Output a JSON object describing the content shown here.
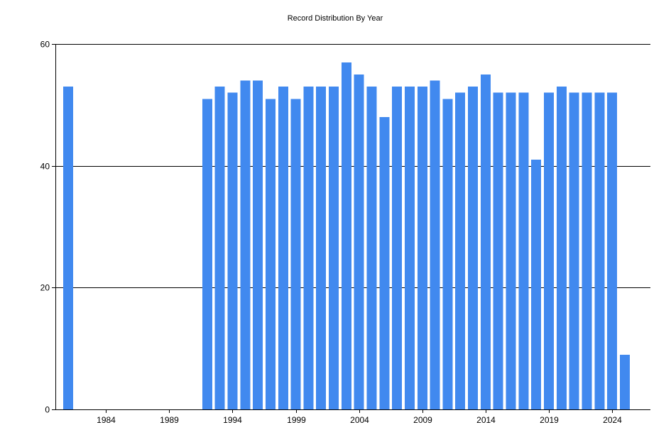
{
  "chart_data": {
    "type": "bar",
    "title": "Record Distribution By Year",
    "xlabel": "",
    "ylabel": "",
    "x_range": [
      1980,
      2025
    ],
    "ylim": [
      0,
      60
    ],
    "y_ticks": [
      0,
      20,
      40,
      60
    ],
    "x_ticks": [
      1984,
      1989,
      1994,
      1999,
      2004,
      2009,
      2014,
      2019,
      2024
    ],
    "grid": "horizontal",
    "bar_color": "#4189EF",
    "data": [
      {
        "year": 1981,
        "value": 53
      },
      {
        "year": 1992,
        "value": 51
      },
      {
        "year": 1993,
        "value": 53
      },
      {
        "year": 1994,
        "value": 52
      },
      {
        "year": 1995,
        "value": 54
      },
      {
        "year": 1996,
        "value": 54
      },
      {
        "year": 1997,
        "value": 51
      },
      {
        "year": 1998,
        "value": 53
      },
      {
        "year": 1999,
        "value": 51
      },
      {
        "year": 2000,
        "value": 53
      },
      {
        "year": 2001,
        "value": 53
      },
      {
        "year": 2002,
        "value": 53
      },
      {
        "year": 2003,
        "value": 57
      },
      {
        "year": 2004,
        "value": 55
      },
      {
        "year": 2005,
        "value": 53
      },
      {
        "year": 2006,
        "value": 48
      },
      {
        "year": 2007,
        "value": 53
      },
      {
        "year": 2008,
        "value": 53
      },
      {
        "year": 2009,
        "value": 53
      },
      {
        "year": 2010,
        "value": 54
      },
      {
        "year": 2011,
        "value": 51
      },
      {
        "year": 2012,
        "value": 52
      },
      {
        "year": 2013,
        "value": 53
      },
      {
        "year": 2014,
        "value": 55
      },
      {
        "year": 2015,
        "value": 52
      },
      {
        "year": 2016,
        "value": 52
      },
      {
        "year": 2017,
        "value": 52
      },
      {
        "year": 2018,
        "value": 41
      },
      {
        "year": 2019,
        "value": 52
      },
      {
        "year": 2020,
        "value": 53
      },
      {
        "year": 2021,
        "value": 52
      },
      {
        "year": 2022,
        "value": 52
      },
      {
        "year": 2023,
        "value": 52
      },
      {
        "year": 2024,
        "value": 52
      },
      {
        "year": 2025,
        "value": 9
      }
    ]
  }
}
